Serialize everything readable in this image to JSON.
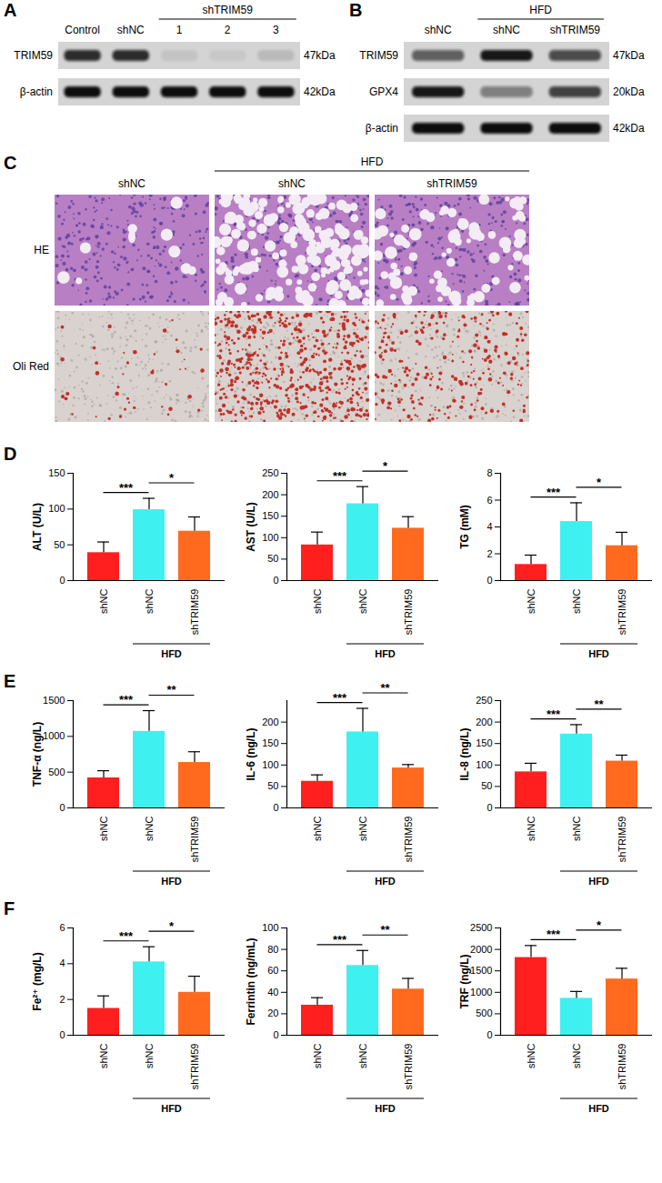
{
  "blots": [
    {
      "label": "A",
      "lanes": [
        "Control",
        "shNC",
        "1",
        "2",
        "3"
      ],
      "groups": [
        {
          "label": "shTRIM59",
          "from": 2,
          "to": 4
        }
      ],
      "rows": [
        {
          "name": "TRIM59",
          "size": "47kDa",
          "intensity": [
            0.85,
            0.85,
            0.08,
            0.06,
            0.12
          ]
        },
        {
          "name": "β-actin",
          "size": "42kDa",
          "intensity": [
            1,
            1,
            1,
            1,
            1
          ]
        }
      ]
    },
    {
      "label": "B",
      "lanes": [
        "shNC",
        "shNC",
        "shTRIM59"
      ],
      "groups": [
        {
          "label": "HFD",
          "from": 1,
          "to": 2
        }
      ],
      "rows": [
        {
          "name": "TRIM59",
          "size": "47kDa",
          "intensity": [
            0.6,
            0.95,
            0.7
          ]
        },
        {
          "name": "GPX4",
          "size": "20kDa",
          "intensity": [
            0.95,
            0.45,
            0.75
          ]
        },
        {
          "name": "β-actin",
          "size": "42kDa",
          "intensity": [
            1,
            1,
            1
          ]
        }
      ]
    }
  ],
  "histology": {
    "label": "C",
    "columns": [
      "shNC",
      "shNC",
      "shTRIM59"
    ],
    "groups": [
      {
        "label": "HFD",
        "from": 1,
        "to": 2
      }
    ],
    "rows": [
      "HE",
      "Oli Red"
    ],
    "lipid_level": [
      0.05,
      1,
      0.45
    ]
  },
  "chart_data": [
    {
      "panel": "D",
      "type": "bar",
      "y_label": "ALT (U/L)",
      "categories": [
        "shNC",
        "shNC",
        "shTRIM59"
      ],
      "values": [
        39,
        99,
        69
      ],
      "errors": [
        15,
        16,
        20
      ],
      "colors": [
        "#ff1f1f",
        "#3ef0f0",
        "#ff6a1f"
      ],
      "ylim": [
        0,
        150
      ],
      "yticks": [
        0,
        50,
        100,
        150
      ],
      "group": {
        "label": "HFD",
        "from": 1,
        "to": 2
      },
      "significance": [
        {
          "from": 0,
          "to": 1,
          "label": "***"
        },
        {
          "from": 1,
          "to": 2,
          "label": "*"
        }
      ]
    },
    {
      "panel": "D",
      "type": "bar",
      "y_label": "AST (U/L)",
      "categories": [
        "shNC",
        "shNC",
        "shTRIM59"
      ],
      "values": [
        83,
        179,
        122
      ],
      "errors": [
        30,
        40,
        27
      ],
      "colors": [
        "#ff1f1f",
        "#3ef0f0",
        "#ff6a1f"
      ],
      "ylim": [
        0,
        250
      ],
      "yticks": [
        0,
        50,
        100,
        150,
        200,
        250
      ],
      "group": {
        "label": "HFD",
        "from": 1,
        "to": 2
      },
      "significance": [
        {
          "from": 0,
          "to": 1,
          "label": "***"
        },
        {
          "from": 1,
          "to": 2,
          "label": "*"
        }
      ]
    },
    {
      "panel": "D",
      "type": "bar",
      "y_label": "TG (mM)",
      "categories": [
        "shNC",
        "shNC",
        "shTRIM59"
      ],
      "values": [
        1.2,
        4.4,
        2.6
      ],
      "errors": [
        0.7,
        1.4,
        1.0
      ],
      "colors": [
        "#ff1f1f",
        "#3ef0f0",
        "#ff6a1f"
      ],
      "ylim": [
        0,
        8
      ],
      "yticks": [
        0,
        2,
        4,
        6,
        8
      ],
      "group": {
        "label": "HFD",
        "from": 1,
        "to": 2
      },
      "significance": [
        {
          "from": 0,
          "to": 1,
          "label": "***"
        },
        {
          "from": 1,
          "to": 2,
          "label": "*"
        }
      ]
    },
    {
      "panel": "E",
      "type": "bar",
      "y_label": "TNF-α (ng/L)",
      "categories": [
        "shNC",
        "shNC",
        "shTRIM59"
      ],
      "values": [
        420,
        1070,
        635
      ],
      "errors": [
        100,
        290,
        150
      ],
      "colors": [
        "#ff1f1f",
        "#3ef0f0",
        "#ff6a1f"
      ],
      "ylim": [
        0,
        1500
      ],
      "yticks": [
        0,
        500,
        1000,
        1500
      ],
      "group": {
        "label": "HFD",
        "from": 1,
        "to": 2
      },
      "significance": [
        {
          "from": 0,
          "to": 1,
          "label": "***"
        },
        {
          "from": 1,
          "to": 2,
          "label": "**"
        }
      ]
    },
    {
      "panel": "E",
      "type": "bar",
      "y_label": "IL-6 (ng/L)",
      "categories": [
        "shNC",
        "shNC",
        "shTRIM59"
      ],
      "values": [
        62,
        177,
        93
      ],
      "errors": [
        15,
        55,
        8
      ],
      "colors": [
        "#ff1f1f",
        "#3ef0f0",
        "#ff6a1f"
      ],
      "ylim": [
        0,
        250
      ],
      "yticks": [
        0,
        50,
        100,
        150,
        200
      ],
      "group": {
        "label": "HFD",
        "from": 1,
        "to": 2
      },
      "significance": [
        {
          "from": 0,
          "to": 1,
          "label": "***"
        },
        {
          "from": 1,
          "to": 2,
          "label": "**"
        }
      ]
    },
    {
      "panel": "E",
      "type": "bar",
      "y_label": "IL-8 (ng/L)",
      "categories": [
        "shNC",
        "shNC",
        "shTRIM59"
      ],
      "values": [
        84,
        172,
        109
      ],
      "errors": [
        20,
        22,
        14
      ],
      "colors": [
        "#ff1f1f",
        "#3ef0f0",
        "#ff6a1f"
      ],
      "ylim": [
        0,
        250
      ],
      "yticks": [
        0,
        50,
        100,
        150,
        200,
        250
      ],
      "group": {
        "label": "HFD",
        "from": 1,
        "to": 2
      },
      "significance": [
        {
          "from": 0,
          "to": 1,
          "label": "***"
        },
        {
          "from": 1,
          "to": 2,
          "label": "**"
        }
      ]
    },
    {
      "panel": "F",
      "type": "bar",
      "y_label": "Fe²⁺ (mg/L)",
      "categories": [
        "shNC",
        "shNC",
        "shTRIM59"
      ],
      "values": [
        1.5,
        4.1,
        2.4
      ],
      "errors": [
        0.7,
        0.85,
        0.9
      ],
      "colors": [
        "#ff1f1f",
        "#3ef0f0",
        "#ff6a1f"
      ],
      "ylim": [
        0,
        6
      ],
      "yticks": [
        0,
        2,
        4,
        6
      ],
      "group": {
        "label": "HFD",
        "from": 1,
        "to": 2
      },
      "significance": [
        {
          "from": 0,
          "to": 1,
          "label": "***"
        },
        {
          "from": 1,
          "to": 2,
          "label": "*"
        }
      ]
    },
    {
      "panel": "F",
      "type": "bar",
      "y_label": "Ferrintin (ng/mL)",
      "categories": [
        "shNC",
        "shNC",
        "shTRIM59"
      ],
      "values": [
        28,
        65,
        43
      ],
      "errors": [
        7,
        14,
        10
      ],
      "colors": [
        "#ff1f1f",
        "#3ef0f0",
        "#ff6a1f"
      ],
      "ylim": [
        0,
        100
      ],
      "yticks": [
        0,
        20,
        40,
        60,
        80,
        100
      ],
      "group": {
        "label": "HFD",
        "from": 1,
        "to": 2
      },
      "significance": [
        {
          "from": 0,
          "to": 1,
          "label": "***"
        },
        {
          "from": 1,
          "to": 2,
          "label": "**"
        }
      ]
    },
    {
      "panel": "F",
      "type": "bar",
      "y_label": "TRF (ng/L)",
      "categories": [
        "shNC",
        "shNC",
        "shTRIM59"
      ],
      "values": [
        1810,
        860,
        1310
      ],
      "errors": [
        280,
        160,
        250
      ],
      "colors": [
        "#ff1f1f",
        "#3ef0f0",
        "#ff6a1f"
      ],
      "ylim": [
        0,
        2500
      ],
      "yticks": [
        0,
        500,
        1000,
        1500,
        2000,
        2500
      ],
      "group": {
        "label": "HFD",
        "from": 1,
        "to": 2
      },
      "significance": [
        {
          "from": 0,
          "to": 1,
          "label": "***"
        },
        {
          "from": 1,
          "to": 2,
          "label": "*"
        }
      ]
    }
  ]
}
